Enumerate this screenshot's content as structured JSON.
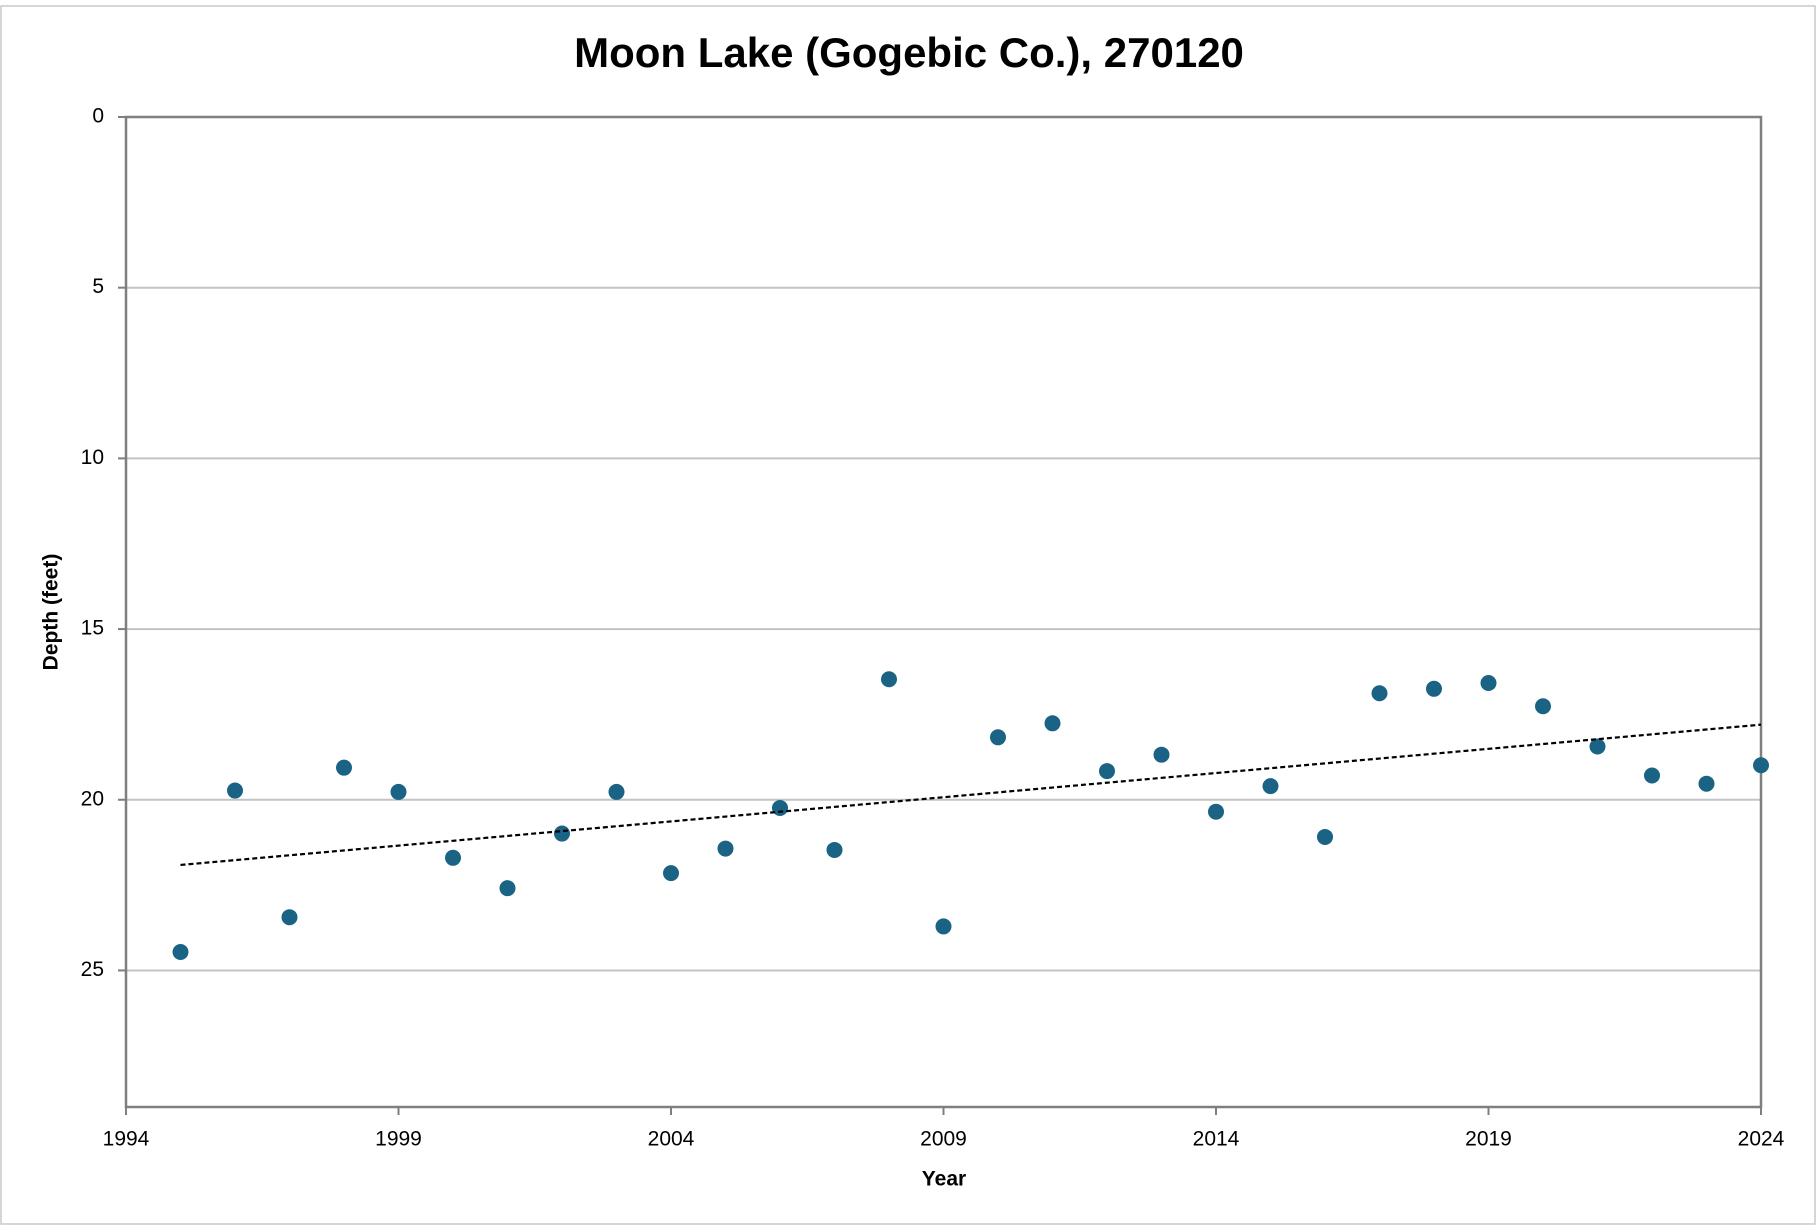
{
  "chart_data": {
    "type": "scatter",
    "title": "Moon Lake (Gogebic Co.), 270120",
    "x_label": "Year",
    "y_label": "Depth (feet)",
    "x": [
      1995,
      1996,
      1997,
      1998,
      1999,
      2000,
      2001,
      2002,
      2003,
      2004,
      2005,
      2006,
      2007,
      2008,
      2009,
      2010,
      2011,
      2012,
      2013,
      2014,
      2015,
      2016,
      2017,
      2018,
      2019,
      2020,
      2021,
      2022,
      2023,
      2024
    ],
    "series": [
      {
        "name": "Depth",
        "color": "#1b6385",
        "values": [
          24.46,
          19.73,
          23.44,
          19.06,
          19.77,
          21.7,
          22.59,
          20.99,
          19.77,
          22.15,
          21.43,
          20.24,
          21.47,
          16.47,
          23.71,
          18.17,
          17.76,
          19.16,
          18.68,
          20.35,
          19.6,
          21.09,
          16.88,
          16.75,
          16.58,
          17.26,
          18.44,
          19.29,
          19.53,
          18.99
        ]
      }
    ],
    "trendline": {
      "x": [
        1995,
        2024
      ],
      "values": [
        21.91,
        17.8
      ],
      "color": "#000000"
    },
    "xlim": [
      1994,
      2024
    ],
    "xticks": [
      1994,
      1999,
      2004,
      2009,
      2014,
      2019,
      2024
    ],
    "ylim": [
      0,
      29
    ],
    "yticks": [
      0,
      5,
      10,
      15,
      20,
      25
    ],
    "y_reversed": true,
    "grid": true
  }
}
